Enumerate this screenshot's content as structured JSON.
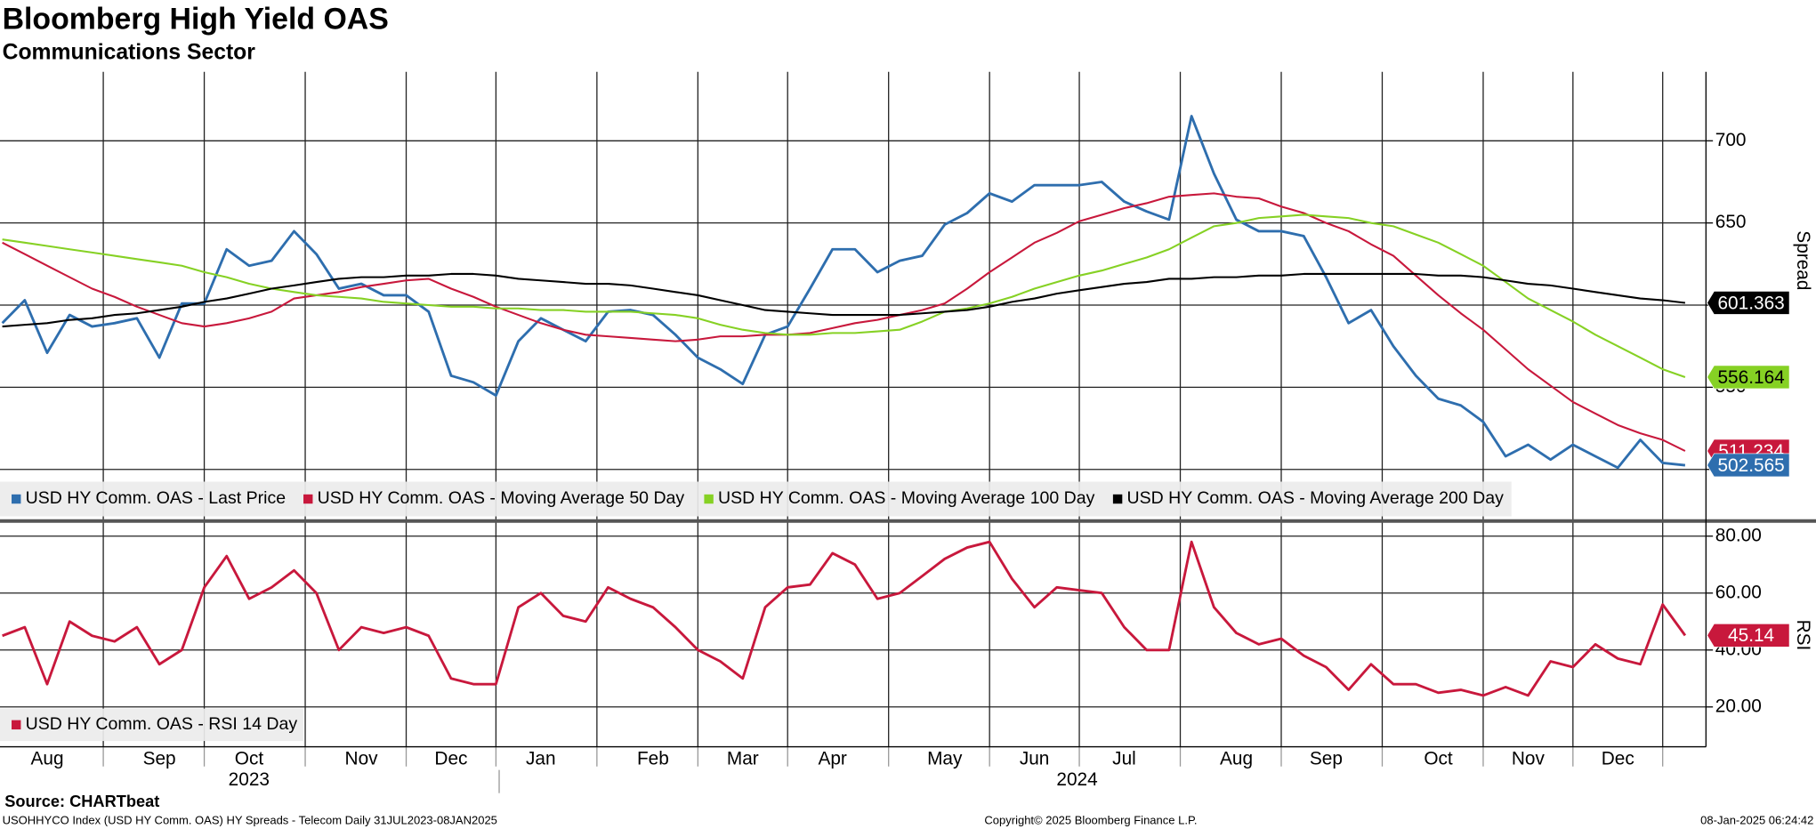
{
  "chart_data": [
    {
      "type": "line",
      "title": "Bloomberg High Yield OAS",
      "subtitle": "Communications Sector",
      "ylabel": "Spread",
      "ylim": [
        470,
        742
      ],
      "yticks": [
        500,
        550,
        600,
        650,
        700
      ],
      "grid": true,
      "series": [
        {
          "name": "USD HY Comm. OAS - Last Price",
          "color": "#2e6eae",
          "values": [
            589,
            603,
            571,
            594,
            587,
            589,
            592,
            568,
            601,
            601,
            634,
            624,
            627,
            645,
            631,
            610,
            613,
            606,
            606,
            596,
            557,
            553,
            545,
            578,
            592,
            585,
            578,
            596,
            597,
            594,
            582,
            568,
            561,
            552,
            582,
            587,
            610,
            634,
            634,
            620,
            627,
            630,
            649,
            656,
            668,
            663,
            673,
            673,
            673,
            675,
            663,
            657,
            652,
            715,
            680,
            652,
            645,
            645,
            642,
            617,
            589,
            597,
            575,
            557,
            543,
            539,
            529,
            508,
            515,
            506,
            515,
            508,
            501,
            518,
            504,
            502.565
          ]
        },
        {
          "name": "USD HY Comm. OAS - Moving Average 50 Day",
          "color": "#c8183c",
          "values": [
            638,
            631,
            624,
            617,
            610,
            605,
            599,
            594,
            589,
            587,
            589,
            592,
            596,
            604,
            606,
            608,
            611,
            613,
            615,
            616,
            610,
            605,
            599,
            594,
            589,
            585,
            582,
            581,
            580,
            579,
            578,
            579,
            581,
            581,
            582,
            582,
            583,
            586,
            589,
            591,
            594,
            597,
            601,
            610,
            620,
            629,
            638,
            644,
            651,
            655,
            659,
            662,
            666,
            667,
            668,
            666,
            665,
            660,
            656,
            650,
            645,
            637,
            630,
            618,
            606,
            595,
            585,
            573,
            561,
            551,
            541,
            534,
            527,
            522,
            518,
            511.234
          ]
        },
        {
          "name": "USD HY Comm. OAS - Moving Average 100 Day",
          "color": "#86d124",
          "values": [
            640,
            638,
            636,
            634,
            632,
            630,
            628,
            626,
            624,
            620,
            617,
            613,
            610,
            608,
            606,
            605,
            604,
            602,
            601,
            600,
            599,
            599,
            598,
            598,
            597,
            597,
            596,
            596,
            596,
            595,
            594,
            592,
            588,
            585,
            583,
            582,
            582,
            583,
            583,
            584,
            585,
            590,
            596,
            598,
            601,
            605,
            610,
            614,
            618,
            621,
            625,
            629,
            634,
            641,
            648,
            650,
            653,
            654,
            655,
            654,
            653,
            650,
            648,
            643,
            638,
            631,
            624,
            614,
            604,
            597,
            590,
            582,
            575,
            568,
            561,
            556.164
          ]
        },
        {
          "name": "USD HY Comm. OAS - Moving Average 200 Day",
          "color": "#000000",
          "values": [
            587,
            588,
            589,
            591,
            592,
            594,
            595,
            597,
            599,
            602,
            604,
            607,
            610,
            612,
            614,
            616,
            617,
            617,
            618,
            618,
            619,
            619,
            618,
            616,
            615,
            614,
            613,
            613,
            612,
            610,
            608,
            606,
            603,
            600,
            597,
            596,
            595,
            594,
            594,
            594,
            594,
            595,
            596,
            597,
            599,
            602,
            604,
            607,
            609,
            611,
            613,
            614,
            616,
            616,
            617,
            617,
            618,
            618,
            619,
            619,
            619,
            619,
            619,
            619,
            618,
            618,
            617,
            615,
            613,
            612,
            610,
            608,
            606,
            604,
            603,
            601.363
          ]
        }
      ]
    },
    {
      "type": "line",
      "ylabel": "RSI",
      "ylim": [
        6,
        84.5
      ],
      "yticks": [
        {
          "value": 20,
          "label": "20.00"
        },
        {
          "value": 40,
          "label": "40.00"
        },
        {
          "value": 60,
          "label": "60.00"
        },
        {
          "value": 80,
          "label": "80.00"
        }
      ],
      "grid": true,
      "categories": [
        null,
        null,
        "Aug",
        null,
        null,
        null,
        null,
        "Sep",
        null,
        null,
        null,
        "Oct",
        null,
        null,
        null,
        null,
        "Nov",
        null,
        null,
        null,
        "Dec",
        null,
        null,
        null,
        "Jan",
        null,
        null,
        null,
        null,
        "Feb",
        null,
        null,
        null,
        "Mar",
        null,
        null,
        null,
        "Apr",
        null,
        null,
        null,
        null,
        "May",
        null,
        null,
        null,
        "Jun",
        null,
        null,
        null,
        "Jul",
        null,
        null,
        null,
        null,
        "Aug",
        null,
        null,
        null,
        "Sep",
        null,
        null,
        null,
        null,
        "Oct",
        null,
        null,
        null,
        "Nov",
        null,
        null,
        null,
        "Dec",
        null,
        null,
        null
      ],
      "x_groups": [
        "2023",
        "2024"
      ],
      "series": [
        {
          "name": "USD HY Comm. OAS - RSI 14 Day",
          "color": "#c8183c",
          "values": [
            45,
            48,
            28,
            50,
            45,
            43,
            48,
            35,
            40,
            62,
            73,
            58,
            62,
            68,
            60,
            40,
            48,
            46,
            48,
            45,
            30,
            28,
            28,
            55,
            60,
            52,
            50,
            62,
            58,
            55,
            48,
            40,
            36,
            30,
            55,
            62,
            63,
            74,
            70,
            58,
            60,
            66,
            72,
            76,
            78,
            65,
            55,
            62,
            61,
            60,
            48,
            40,
            40,
            78,
            55,
            46,
            42,
            44,
            38,
            34,
            26,
            35,
            28,
            28,
            25,
            26,
            24,
            27,
            24,
            36,
            34,
            42,
            37,
            35,
            56,
            45.14
          ]
        }
      ]
    }
  ],
  "footer": {
    "source": "Source: CHARTbeat",
    "index_line": "USOHHYCO Index (USD HY Comm. OAS) HY Spreads - Telecom  Daily 31JUL2023-08JAN2025",
    "copyright": "Copyright© 2025 Bloomberg Finance L.P.",
    "timestamp": "08-Jan-2025 06:24:42"
  }
}
